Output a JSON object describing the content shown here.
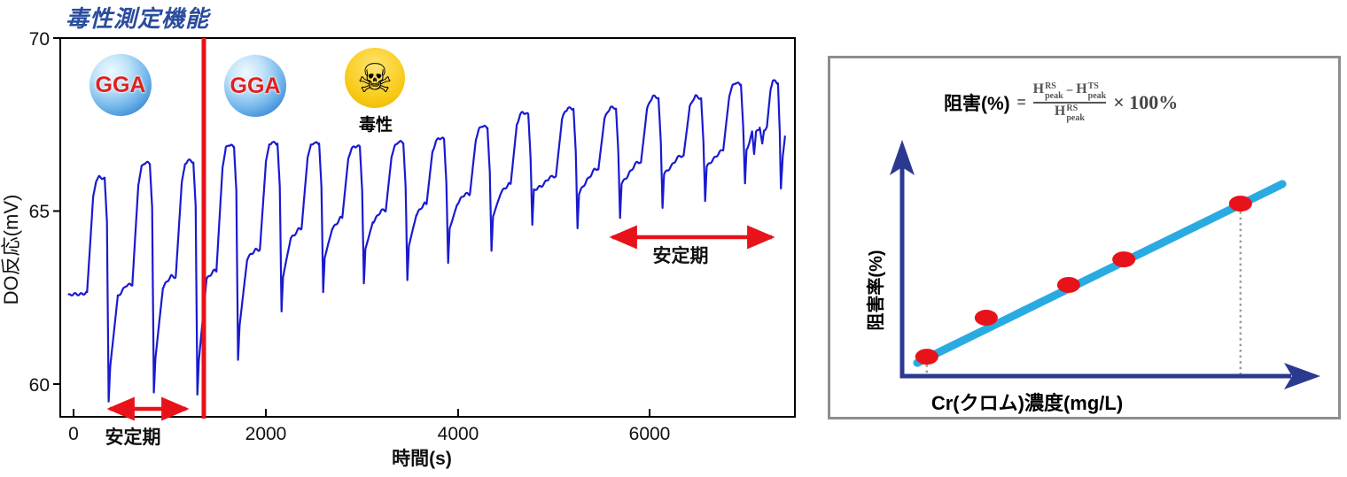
{
  "title": {
    "text": "毒性測定機能"
  },
  "left_chart": {
    "ylabel": "DO反応(mV)",
    "xlabel": "時間(s)",
    "y_ticks": [
      {
        "label": "70"
      },
      {
        "label": "65"
      },
      {
        "label": "60"
      }
    ],
    "x_ticks": [
      {
        "label": "0"
      },
      {
        "label": "2000"
      },
      {
        "label": "4000"
      },
      {
        "label": "6000"
      }
    ],
    "annotations": {
      "gga1": "GGA",
      "gga2": "GGA",
      "skull_glyph": "☠",
      "toxin_label": "毒性",
      "stable1": "安定期",
      "stable2": "安定期"
    },
    "colors": {
      "trace_blue": "#1A1AD0",
      "annotation_red": "#E8121A",
      "sphere_blue": "#2f7fd0",
      "skull_yellow": "#F8CB18",
      "title_blue": "#2B4C9E"
    }
  },
  "right_panel": {
    "formula": {
      "lhs": "阻害(%)",
      "eq": "=",
      "h": "H",
      "sup_rs": "RS",
      "sup_ts": "TS",
      "sub_peak": "peak",
      "minus": "−",
      "times_pct": "× 100%"
    },
    "ylabel": "阻害率(%)",
    "xlabel": "Cr(クロム)濃度(mg/L)",
    "colors": {
      "axis_navy": "#2B3990",
      "line_cyan": "#29ABE2",
      "dot_red": "#E8121A"
    }
  },
  "chart_data": [
    {
      "type": "line",
      "series_name": "DO反応",
      "title": "毒性測定機能",
      "xlabel": "時間(s)",
      "ylabel": "DO反応(mV)",
      "xlim": [
        -60,
        7420
      ],
      "ylim": [
        59,
        70
      ],
      "x_ticks": [
        0,
        2000,
        4000,
        6000
      ],
      "y_ticks": [
        60,
        65,
        70
      ],
      "grid": false,
      "toxin_injection_line_t": 1357,
      "stable_period_arrows": [
        {
          "t0": 270,
          "t1": 1285,
          "label": "安定期"
        },
        {
          "t0": 5485,
          "t1": 7405,
          "label": "安定期"
        }
      ],
      "start": {
        "t": -55,
        "v": 62.55
      },
      "end": {
        "t": 7414,
        "v": 67.18
      },
      "cycles": [
        {
          "t": 166,
          "base": 62.65,
          "peak": 66.0,
          "trough": 59.5
        },
        {
          "t": 637,
          "base": 62.85,
          "peak": 66.4,
          "trough": 59.75
        },
        {
          "t": 1090,
          "base": 63.1,
          "peak": 66.45,
          "trough": 59.7
        },
        {
          "t": 1514,
          "base": 63.3,
          "peak": 66.9,
          "trough": 60.7
        },
        {
          "t": 1967,
          "base": 63.9,
          "peak": 67.0,
          "trough": 62.1
        },
        {
          "t": 2401,
          "base": 64.5,
          "peak": 67.0,
          "trough": 62.65
        },
        {
          "t": 2825,
          "base": 64.8,
          "peak": 66.9,
          "trough": 62.9
        },
        {
          "t": 3278,
          "base": 65.0,
          "peak": 67.0,
          "trough": 63.0
        },
        {
          "t": 3703,
          "base": 65.2,
          "peak": 67.1,
          "trough": 63.5
        },
        {
          "t": 4155,
          "base": 65.5,
          "peak": 67.45,
          "trough": 63.85
        },
        {
          "t": 4580,
          "base": 65.8,
          "peak": 67.85,
          "trough": 64.6
        },
        {
          "t": 5051,
          "base": 66.0,
          "peak": 68.0,
          "trough": 64.5
        },
        {
          "t": 5494,
          "base": 66.2,
          "peak": 68.0,
          "trough": 64.8
        },
        {
          "t": 5937,
          "base": 66.4,
          "peak": 68.3,
          "trough": 65.1
        },
        {
          "t": 6381,
          "base": 66.6,
          "peak": 68.3,
          "trough": 65.3
        },
        {
          "t": 6796,
          "base": 66.8,
          "peak": 68.7,
          "trough": 65.8
        }
      ],
      "tail": [
        [
          7040,
          66.95
        ],
        [
          7070,
          67.3
        ],
        [
          7110,
          67.25
        ],
        [
          7150,
          67.42
        ],
        [
          7195,
          67.35
        ],
        [
          7225,
          67.45
        ],
        [
          7262,
          68.5
        ],
        [
          7285,
          68.75
        ],
        [
          7340,
          68.7
        ],
        [
          7358,
          67.3
        ],
        [
          7370,
          65.65
        ],
        [
          7390,
          66.6
        ],
        [
          7414,
          67.18
        ]
      ]
    },
    {
      "type": "scatter",
      "conceptual": true,
      "xlabel": "Cr(クロム)濃度(mg/L)",
      "ylabel": "阻害率(%)",
      "formula_text": "阻害(%) = (H_peak^RS − H_peak^TS) / H_peak^RS × 100%",
      "points_frac": [
        [
          0.059,
          0.082
        ],
        [
          0.201,
          0.247
        ],
        [
          0.398,
          0.386
        ],
        [
          0.53,
          0.494
        ],
        [
          0.809,
          0.73
        ]
      ],
      "trendline_frac": [
        [
          0.036,
          0.056
        ],
        [
          0.909,
          0.813
        ]
      ],
      "dashed_point_indices": [
        0,
        4
      ]
    }
  ]
}
